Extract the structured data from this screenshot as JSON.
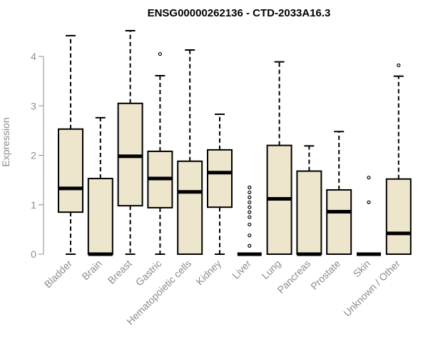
{
  "chart_data": {
    "type": "box",
    "title": "ENSG00000262136 - CTD-2033A16.3",
    "xlabel": "",
    "ylabel": "Expression",
    "ylim": [
      0,
      4.5
    ],
    "yticks": [
      0,
      1,
      2,
      3,
      4
    ],
    "box_fill": "#ede6cc",
    "categories": [
      "Bladder",
      "Brain",
      "Breast",
      "Gastric",
      "Hematopoietic cells",
      "Kidney",
      "Liver",
      "Lung",
      "Pancreas",
      "Prostate",
      "Skin",
      "Unknown / Other"
    ],
    "boxes": [
      {
        "category": "Bladder",
        "min": 0.0,
        "q1": 0.85,
        "median": 1.33,
        "q3": 2.53,
        "max": 4.42,
        "outliers": []
      },
      {
        "category": "Brain",
        "min": 0.0,
        "q1": 0.0,
        "median": 0.0,
        "q3": 1.53,
        "max": 2.76,
        "outliers": []
      },
      {
        "category": "Breast",
        "min": 0.0,
        "q1": 0.98,
        "median": 1.98,
        "q3": 3.05,
        "max": 4.52,
        "outliers": []
      },
      {
        "category": "Gastric",
        "min": 0.0,
        "q1": 0.94,
        "median": 1.53,
        "q3": 2.08,
        "max": 3.61,
        "outliers": [
          4.05
        ]
      },
      {
        "category": "Hematopoietic cells",
        "min": 0.0,
        "q1": 0.0,
        "median": 1.26,
        "q3": 1.88,
        "max": 4.13,
        "outliers": []
      },
      {
        "category": "Kidney",
        "min": 0.0,
        "q1": 0.95,
        "median": 1.65,
        "q3": 2.11,
        "max": 2.83,
        "outliers": []
      },
      {
        "category": "Liver",
        "min": 0.0,
        "q1": 0.0,
        "median": 0.0,
        "q3": 0.0,
        "max": 0.0,
        "outliers": [
          0.17,
          0.38,
          0.6,
          0.75,
          0.85,
          0.95,
          1.05,
          1.15,
          1.25,
          1.35
        ]
      },
      {
        "category": "Lung",
        "min": 0.0,
        "q1": 0.0,
        "median": 1.12,
        "q3": 2.2,
        "max": 3.89,
        "outliers": []
      },
      {
        "category": "Pancreas",
        "min": 0.0,
        "q1": 0.0,
        "median": 0.0,
        "q3": 1.68,
        "max": 2.19,
        "outliers": []
      },
      {
        "category": "Prostate",
        "min": 0.0,
        "q1": 0.0,
        "median": 0.86,
        "q3": 1.3,
        "max": 2.48,
        "outliers": []
      },
      {
        "category": "Skin",
        "min": 0.0,
        "q1": 0.0,
        "median": 0.0,
        "q3": 0.0,
        "max": 0.0,
        "outliers": [
          1.05,
          1.55
        ]
      },
      {
        "category": "Unknown / Other",
        "min": 0.0,
        "q1": 0.0,
        "median": 0.42,
        "q3": 1.52,
        "max": 3.6,
        "outliers": [
          3.82
        ]
      }
    ]
  }
}
